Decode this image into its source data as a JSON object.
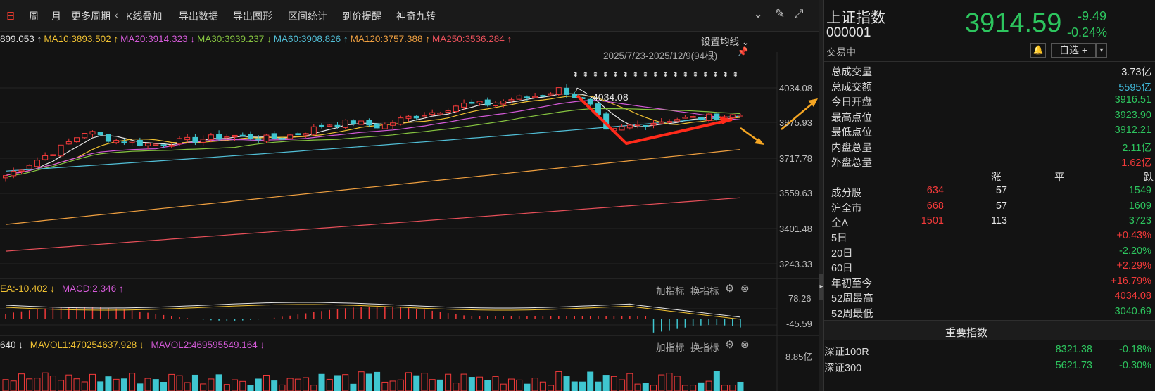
{
  "toolbar": {
    "items": [
      "日",
      "周",
      "月",
      "更多周期",
      "K线叠加",
      "导出数据",
      "导出图形",
      "区间统计",
      "到价提醒",
      "神奇九转"
    ]
  },
  "ma_bar": {
    "items": [
      {
        "text": "899.053 ↑",
        "color": "#e6e6e6"
      },
      {
        "text": "MA10:3893.502 ↑",
        "color": "#f1c232"
      },
      {
        "text": "MA20:3914.323 ↓",
        "color": "#d45ad8"
      },
      {
        "text": "MA30:3939.237 ↓",
        "color": "#86c440"
      },
      {
        "text": "MA60:3908.826 ↑",
        "color": "#52c0d8"
      },
      {
        "text": "MA120:3757.388 ↑",
        "color": "#f0a040"
      },
      {
        "text": "MA250:3536.284 ↑",
        "color": "#e8505a"
      }
    ],
    "settings_label": "设置均线"
  },
  "range_label": "2025/7/23-2025/12/9(94根)",
  "peak_label": "4034.08",
  "price_axis": [
    "4034.08",
    "3875.93",
    "3717.78",
    "3559.63",
    "3401.48",
    "3243.33"
  ],
  "macd_pane": {
    "header": [
      {
        "text": "EA:-10.402 ↓",
        "color": "#f1c232"
      },
      {
        "text": "MACD:2.346 ↑",
        "color": "#d45ad8"
      }
    ],
    "add_label": "加指标",
    "switch_label": "换指标",
    "axis": [
      "78.26",
      "-45.59"
    ]
  },
  "vol_pane": {
    "header": [
      {
        "text": "640 ↓",
        "color": "#e6e6e6"
      },
      {
        "text": "MAVOL1:470254637.928 ↓",
        "color": "#f1c232"
      },
      {
        "text": "MAVOL2:469595549.164 ↓",
        "color": "#d45ad8"
      }
    ],
    "add_label": "加指标",
    "switch_label": "换指标",
    "axis": [
      "8.85亿"
    ]
  },
  "quote": {
    "name": "上证指数",
    "code": "000001",
    "status": "交易中",
    "price": "3914.59",
    "change": "-9.49",
    "change_pct": "-0.24%",
    "watch_label": "自选 +"
  },
  "stats": [
    {
      "label": "总成交量",
      "value": "3.73亿",
      "color": "#e6e6e6"
    },
    {
      "label": "总成交额",
      "value": "5595亿",
      "color": "#3fb6d6"
    },
    {
      "label": "今日开盘",
      "value": "3916.51",
      "color": "#2dc55e"
    },
    {
      "label": "最高点位",
      "value": "3923.90",
      "color": "#2dc55e"
    },
    {
      "label": "最低点位",
      "value": "3912.21",
      "color": "#2dc55e"
    },
    {
      "label": "内盘总量",
      "value": "2.11亿",
      "color": "#2dc55e"
    },
    {
      "label": "外盘总量",
      "value": "1.62亿",
      "color": "#f23a3a"
    }
  ],
  "breadth": {
    "headers": [
      "涨",
      "平",
      "跌"
    ],
    "rows": [
      {
        "label": "成分股",
        "up": "634",
        "flat": "57",
        "down": "1549"
      },
      {
        "label": "沪全市",
        "up": "668",
        "flat": "57",
        "down": "1609"
      },
      {
        "label": "全A",
        "up": "1501",
        "flat": "113",
        "down": "3723"
      }
    ]
  },
  "periods": [
    {
      "label": "5日",
      "value": "+0.43%",
      "color": "#f23a3a"
    },
    {
      "label": "20日",
      "value": "-2.20%",
      "color": "#2dc55e"
    },
    {
      "label": "60日",
      "value": "+2.29%",
      "color": "#f23a3a"
    },
    {
      "label": "年初至今",
      "value": "+16.79%",
      "color": "#f23a3a"
    },
    {
      "label": "52周最高",
      "value": "4034.08",
      "color": "#f23a3a"
    },
    {
      "label": "52周最低",
      "value": "3040.69",
      "color": "#2dc55e"
    }
  ],
  "key_index_title": "重要指数",
  "key_indices": [
    {
      "name": "深证100R",
      "price": "8321.38",
      "pct": "-0.18%"
    },
    {
      "name": "深证300",
      "price": "5621.73",
      "pct": "-0.30%"
    }
  ],
  "colors": {
    "up": "#f23a3a",
    "down": "#2dc55e",
    "cyan": "#3fb6d6",
    "bg": "#131313"
  }
}
